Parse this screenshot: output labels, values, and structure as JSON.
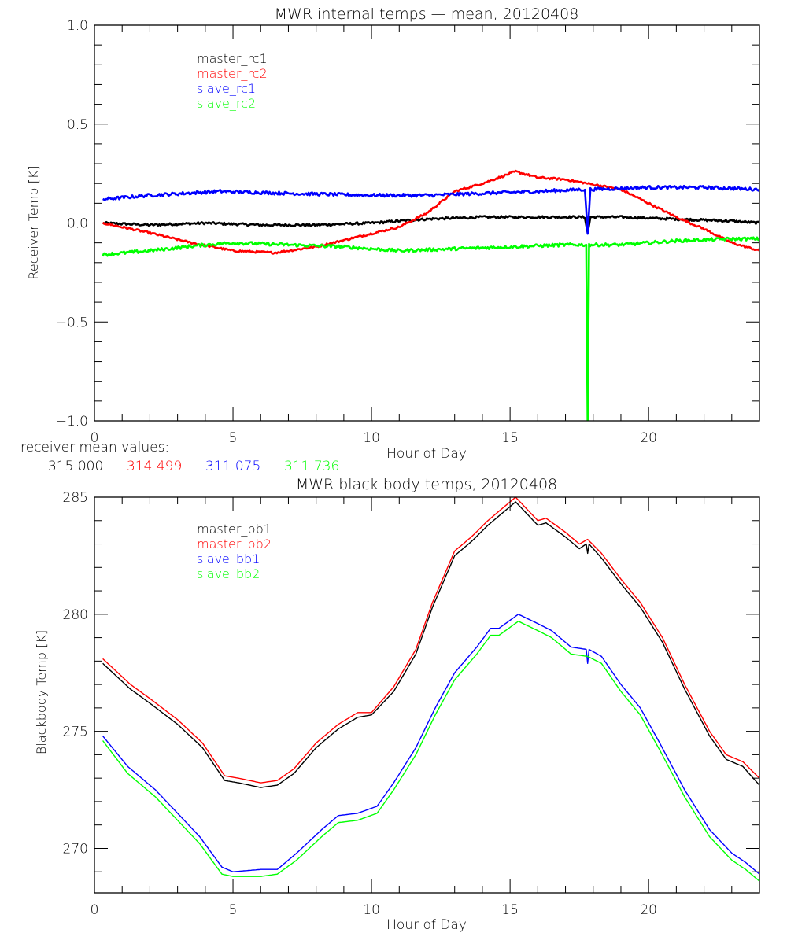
{
  "figure": {
    "receiver_means_label": "receiver mean values:",
    "receiver_means": [
      {
        "value": "315.000",
        "color": "#000000"
      },
      {
        "value": "314.499",
        "color": "#ff0000"
      },
      {
        "value": "311.075",
        "color": "#0000ff"
      },
      {
        "value": "311.736",
        "color": "#00ff00"
      }
    ]
  },
  "chart_data": [
    {
      "type": "line",
      "title": "MWR internal temps — mean, 20120408",
      "xlabel": "Hour of Day",
      "ylabel": "Receiver Temp [K]",
      "xlim": [
        0,
        24
      ],
      "ylim": [
        -1.0,
        1.0
      ],
      "xticks": [
        0,
        5,
        10,
        15,
        20
      ],
      "xtick_labels": [
        "0",
        "5",
        "10",
        "15",
        "20"
      ],
      "x_minor_step": 1,
      "yticks": [
        -1.0,
        -0.5,
        0.0,
        0.5,
        1.0
      ],
      "ytick_labels": [
        "−1.0",
        "−0.5",
        "0.0",
        "0.5",
        "1.0"
      ],
      "y_minor_step": 0.1,
      "grid": false,
      "legend_position": "top-left",
      "series": [
        {
          "name": "master_rc1",
          "color": "#000000",
          "noise": 0.006,
          "x": [
            0.3,
            2,
            4,
            6,
            8,
            10,
            12,
            14,
            16,
            17.7,
            17.8,
            17.9,
            19,
            21,
            23,
            24
          ],
          "y": [
            0.0,
            -0.01,
            0.0,
            -0.01,
            -0.01,
            0.0,
            0.02,
            0.03,
            0.03,
            0.03,
            -0.05,
            0.03,
            0.03,
            0.02,
            0.01,
            0.0
          ]
        },
        {
          "name": "master_rc2",
          "color": "#ff0000",
          "noise": 0.005,
          "x": [
            0.3,
            2,
            3.5,
            5,
            6.5,
            8,
            9.5,
            11,
            12,
            13,
            14,
            15.2,
            16,
            17,
            17.8,
            19,
            20,
            21,
            22,
            23,
            24
          ],
          "y": [
            0.0,
            -0.05,
            -0.1,
            -0.14,
            -0.15,
            -0.12,
            -0.07,
            -0.02,
            0.05,
            0.16,
            0.2,
            0.26,
            0.23,
            0.22,
            0.2,
            0.17,
            0.1,
            0.03,
            -0.03,
            -0.1,
            -0.14
          ]
        },
        {
          "name": "slave_rc1",
          "color": "#0000ff",
          "noise": 0.008,
          "x": [
            0.3,
            2,
            4.5,
            7,
            10,
            12,
            14,
            16,
            17.7,
            17.8,
            17.9,
            20,
            22,
            24
          ],
          "y": [
            0.12,
            0.14,
            0.16,
            0.15,
            0.14,
            0.14,
            0.15,
            0.16,
            0.17,
            -0.05,
            0.17,
            0.18,
            0.18,
            0.17
          ]
        },
        {
          "name": "slave_rc2",
          "color": "#00ff00",
          "noise": 0.008,
          "x": [
            0.3,
            2,
            4,
            5,
            7,
            9,
            11,
            13,
            15,
            17,
            17.75,
            17.8,
            17.85,
            19,
            21,
            23,
            24
          ],
          "y": [
            -0.16,
            -0.14,
            -0.11,
            -0.1,
            -0.11,
            -0.12,
            -0.14,
            -0.13,
            -0.12,
            -0.11,
            -0.11,
            -1.0,
            -0.11,
            -0.11,
            -0.09,
            -0.08,
            -0.08
          ]
        }
      ]
    },
    {
      "type": "line",
      "title": "MWR black body temps, 20120408",
      "xlabel": "Hour of Day",
      "ylabel": "Blackbody Temp [K]",
      "xlim": [
        0,
        24
      ],
      "ylim": [
        268.1,
        285.0
      ],
      "xticks": [
        0,
        5,
        10,
        15,
        20
      ],
      "xtick_labels": [
        "0",
        "5",
        "10",
        "15",
        "20"
      ],
      "x_minor_step": 1,
      "yticks": [
        270,
        275,
        280,
        285
      ],
      "ytick_labels": [
        "270",
        "275",
        "280",
        "285"
      ],
      "y_minor_step": 1,
      "grid": false,
      "legend_position": "top-left",
      "series": [
        {
          "name": "master_bb1",
          "color": "#000000",
          "x": [
            0.3,
            1.3,
            2,
            3,
            3.9,
            4.7,
            5.2,
            6,
            6.6,
            7.2,
            8,
            8.8,
            9.5,
            10,
            10.8,
            11.6,
            12.2,
            13,
            13.6,
            14.2,
            14.5,
            15.2,
            16,
            16.3,
            17,
            17.5,
            17.75,
            17.8,
            17.85,
            18.3,
            19,
            19.7,
            20.5,
            21.3,
            22.2,
            22.8,
            23.4,
            24
          ],
          "y": [
            277.9,
            276.8,
            276.2,
            275.3,
            274.3,
            272.9,
            272.8,
            272.6,
            272.7,
            273.2,
            274.3,
            275.1,
            275.6,
            275.7,
            276.7,
            278.3,
            280.3,
            282.5,
            283.1,
            283.8,
            284.1,
            284.8,
            283.8,
            283.9,
            283.3,
            282.8,
            283.0,
            282.6,
            283.0,
            282.4,
            281.3,
            280.3,
            278.8,
            276.8,
            274.8,
            273.8,
            273.5,
            272.7
          ]
        },
        {
          "name": "master_bb2",
          "color": "#ff0000",
          "x": [
            0.3,
            1.3,
            2,
            3,
            3.9,
            4.7,
            5.2,
            6,
            6.6,
            7.2,
            8,
            8.8,
            9.5,
            10,
            10.8,
            11.6,
            12.2,
            13,
            13.6,
            14.2,
            14.5,
            15.2,
            16,
            16.3,
            17,
            17.5,
            17.8,
            18.3,
            19,
            19.7,
            20.5,
            21.3,
            22.2,
            22.8,
            23.4,
            24
          ],
          "y": [
            278.1,
            277.0,
            276.4,
            275.5,
            274.5,
            273.1,
            273.0,
            272.8,
            272.9,
            273.4,
            274.5,
            275.3,
            275.8,
            275.8,
            276.9,
            278.5,
            280.5,
            282.7,
            283.3,
            284.0,
            284.3,
            285.0,
            284.0,
            284.1,
            283.5,
            283.0,
            283.2,
            282.6,
            281.5,
            280.5,
            279.0,
            277.0,
            275.0,
            274.0,
            273.7,
            273.0
          ]
        },
        {
          "name": "slave_bb1",
          "color": "#0000ff",
          "x": [
            0.3,
            1.2,
            2.2,
            3,
            3.8,
            4.6,
            5,
            6,
            6.6,
            7.3,
            8.2,
            8.8,
            9.5,
            10.2,
            10.8,
            11.6,
            12.3,
            13,
            13.8,
            14.3,
            14.6,
            15.3,
            16,
            16.5,
            17.2,
            17.75,
            17.8,
            17.85,
            18.3,
            19,
            19.7,
            20.4,
            21.3,
            22.2,
            23,
            23.5,
            24
          ],
          "y": [
            274.8,
            273.5,
            272.5,
            271.5,
            270.5,
            269.2,
            269.0,
            269.1,
            269.1,
            269.8,
            270.8,
            271.4,
            271.5,
            271.8,
            272.8,
            274.3,
            276.0,
            277.5,
            278.6,
            279.4,
            279.4,
            280.0,
            279.6,
            279.3,
            278.6,
            278.5,
            277.9,
            278.5,
            278.2,
            277.0,
            276.0,
            274.5,
            272.5,
            270.8,
            269.8,
            269.4,
            268.9
          ]
        },
        {
          "name": "slave_bb2",
          "color": "#00ff00",
          "x": [
            0.3,
            1.2,
            2.2,
            3,
            3.8,
            4.6,
            5,
            6,
            6.6,
            7.3,
            8.2,
            8.8,
            9.5,
            10.2,
            10.8,
            11.6,
            12.3,
            13,
            13.8,
            14.3,
            14.6,
            15.3,
            16,
            16.5,
            17.2,
            17.8,
            18.3,
            19,
            19.7,
            20.4,
            21.3,
            22.2,
            23,
            23.5,
            24
          ],
          "y": [
            274.6,
            273.2,
            272.2,
            271.2,
            270.2,
            268.9,
            268.8,
            268.8,
            268.9,
            269.5,
            270.5,
            271.1,
            271.2,
            271.5,
            272.5,
            274.0,
            275.7,
            277.2,
            278.3,
            279.1,
            279.1,
            279.7,
            279.3,
            279.0,
            278.3,
            278.2,
            277.9,
            276.7,
            275.7,
            274.2,
            272.2,
            270.5,
            269.5,
            269.1,
            268.6
          ]
        }
      ]
    }
  ]
}
